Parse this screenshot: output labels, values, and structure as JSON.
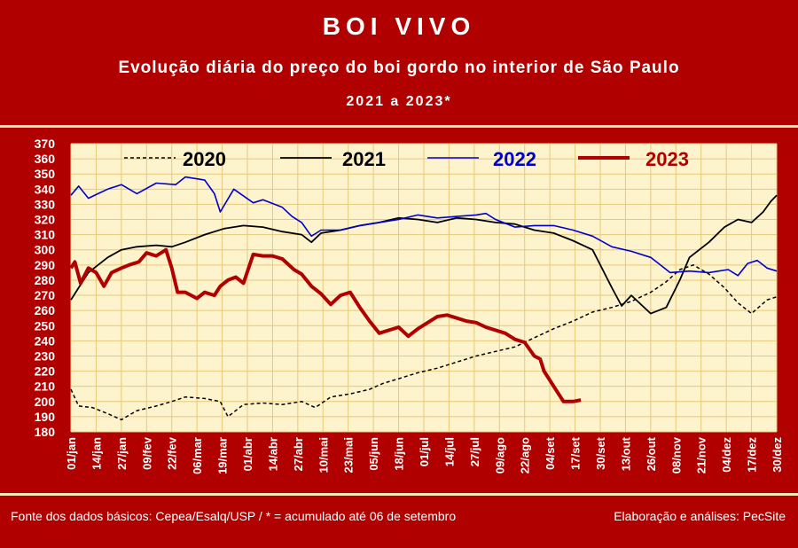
{
  "header": {
    "title": "BOI VIVO",
    "subtitle": "Evolução diária do preço do boi gordo no interior de São Paulo",
    "period": "2021 a 2023*"
  },
  "footer": {
    "source": "Fonte dos dados básicos: Cepea/Esalq/USP   /  * = acumulado até 06 de setembro",
    "credit": "Elaboração e análises: PecSite"
  },
  "colors": {
    "background": "#b10000",
    "plot_background": "#fdf3cc",
    "grid": "#e8c97a",
    "series_2020": "#000000",
    "series_2021": "#000000",
    "series_2022": "#0000cc",
    "series_2023": "#b00000"
  },
  "chart_data": {
    "type": "line",
    "x_is_day_of_year": true,
    "x_ticks": [
      "01/jan",
      "14/jan",
      "27/jan",
      "09/fev",
      "22/fev",
      "06/mar",
      "19/mar",
      "01/abr",
      "14/abr",
      "27/abr",
      "10/mai",
      "23/mai",
      "05/jun",
      "18/jun",
      "01/jul",
      "14/jul",
      "27/jul",
      "09/ago",
      "22/ago",
      "04/set",
      "17/set",
      "30/set",
      "13/out",
      "26/out",
      "08/nov",
      "21/nov",
      "04/dez",
      "17/dez",
      "30/dez"
    ],
    "ylim": [
      180,
      370
    ],
    "y_ticks": [
      180,
      190,
      200,
      210,
      220,
      230,
      240,
      250,
      260,
      270,
      280,
      290,
      300,
      310,
      320,
      330,
      340,
      350,
      360,
      370
    ],
    "grid": true,
    "legend_position": "top",
    "series": [
      {
        "name": "2020",
        "style": "dashed",
        "x": [
          1,
          5,
          12,
          20,
          27,
          35,
          45,
          53,
          60,
          70,
          78,
          82,
          90,
          100,
          110,
          120,
          127,
          135,
          145,
          155,
          162,
          170,
          180,
          190,
          200,
          210,
          220,
          230,
          240,
          250,
          260,
          270,
          280,
          290,
          300,
          308,
          315,
          322,
          330,
          338,
          345,
          352,
          360,
          365
        ],
        "y": [
          208,
          197,
          196,
          192,
          188,
          194,
          197,
          200,
          203,
          202,
          200,
          190,
          198,
          199,
          198,
          200,
          196,
          203,
          205,
          208,
          212,
          215,
          219,
          222,
          226,
          230,
          233,
          236,
          242,
          248,
          253,
          259,
          262,
          266,
          272,
          279,
          287,
          290,
          284,
          275,
          265,
          258,
          267,
          269
        ]
      },
      {
        "name": "2021",
        "style": "solid",
        "x": [
          1,
          5,
          10,
          15,
          20,
          27,
          35,
          45,
          53,
          60,
          70,
          80,
          90,
          100,
          110,
          120,
          125,
          130,
          140,
          150,
          160,
          170,
          180,
          190,
          200,
          210,
          220,
          230,
          240,
          250,
          260,
          270,
          280,
          285,
          290,
          300,
          308,
          315,
          320,
          330,
          338,
          345,
          352,
          358,
          362,
          365
        ],
        "y": [
          267,
          275,
          285,
          290,
          295,
          300,
          302,
          303,
          302,
          305,
          310,
          314,
          316,
          315,
          312,
          310,
          305,
          311,
          313,
          316,
          318,
          321,
          320,
          318,
          321,
          320,
          318,
          317,
          313,
          311,
          306,
          300,
          275,
          263,
          270,
          258,
          262,
          280,
          295,
          305,
          315,
          320,
          318,
          325,
          332,
          336
        ]
      },
      {
        "name": "2022",
        "style": "solid",
        "x": [
          1,
          5,
          10,
          15,
          20,
          27,
          35,
          45,
          55,
          60,
          70,
          75,
          78,
          85,
          95,
          100,
          110,
          115,
          120,
          125,
          130,
          140,
          150,
          160,
          170,
          180,
          190,
          200,
          210,
          215,
          220,
          230,
          240,
          250,
          260,
          270,
          280,
          290,
          300,
          305,
          310,
          320,
          330,
          340,
          345,
          350,
          355,
          360,
          365
        ],
        "y": [
          336,
          342,
          334,
          337,
          340,
          343,
          337,
          344,
          343,
          348,
          346,
          337,
          325,
          340,
          331,
          333,
          328,
          322,
          318,
          309,
          313,
          313,
          316,
          318,
          320,
          323,
          321,
          322,
          323,
          324,
          320,
          315,
          316,
          316,
          313,
          309,
          302,
          299,
          295,
          290,
          285,
          286,
          285,
          287,
          283,
          291,
          293,
          288,
          286
        ]
      },
      {
        "name": "2023",
        "style": "thick",
        "x": [
          1,
          3,
          6,
          10,
          14,
          18,
          22,
          27,
          31,
          36,
          40,
          45,
          50,
          53,
          56,
          60,
          66,
          70,
          75,
          78,
          82,
          86,
          90,
          95,
          100,
          105,
          110,
          116,
          120,
          125,
          130,
          135,
          140,
          145,
          150,
          155,
          160,
          165,
          170,
          175,
          180,
          185,
          190,
          195,
          200,
          205,
          210,
          215,
          220,
          225,
          230,
          235,
          240,
          243,
          245,
          250,
          255,
          260,
          264
        ],
        "y": [
          288,
          292,
          278,
          288,
          285,
          276,
          285,
          288,
          290,
          292,
          298,
          296,
          300,
          288,
          272,
          272,
          268,
          272,
          270,
          276,
          280,
          282,
          278,
          297,
          296,
          296,
          294,
          287,
          284,
          276,
          271,
          264,
          270,
          272,
          262,
          253,
          245,
          247,
          249,
          243,
          248,
          252,
          256,
          257,
          255,
          253,
          252,
          249,
          247,
          245,
          241,
          239,
          230,
          228,
          220,
          210,
          200,
          200,
          201
        ]
      }
    ]
  }
}
